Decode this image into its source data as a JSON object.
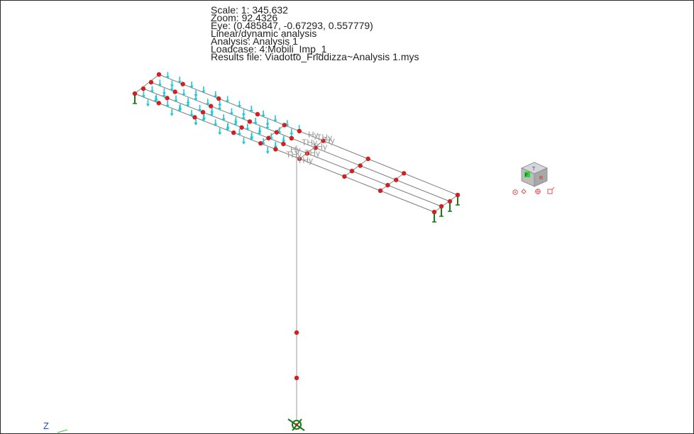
{
  "info": {
    "scale": "Scale: 1: 345.632",
    "zoom": "Zoom: 92.4326",
    "eye": "Eye: (0.485847, -0.67293, 0.557779)",
    "analysis_type": "Linear/dynamic analysis",
    "analysis": "Analysis: Analysis 1",
    "loadcase": "Loadcase: 4:Mobili_Imp_1",
    "results_file": "Results file: Viadotto_Friddizza~Analysis 1.mys"
  },
  "labels": {
    "hy": "Hy",
    "thy": "THy"
  },
  "view_cube": {
    "top": "T",
    "front": "F",
    "right": "R"
  },
  "axis": {
    "z": "Z"
  },
  "colors": {
    "deck_line": "#7d7d7d",
    "node": "#d21f1f",
    "load_arrow": "#19c9d4",
    "support": "#1a7a1a",
    "cube": "#b9b9b9"
  }
}
